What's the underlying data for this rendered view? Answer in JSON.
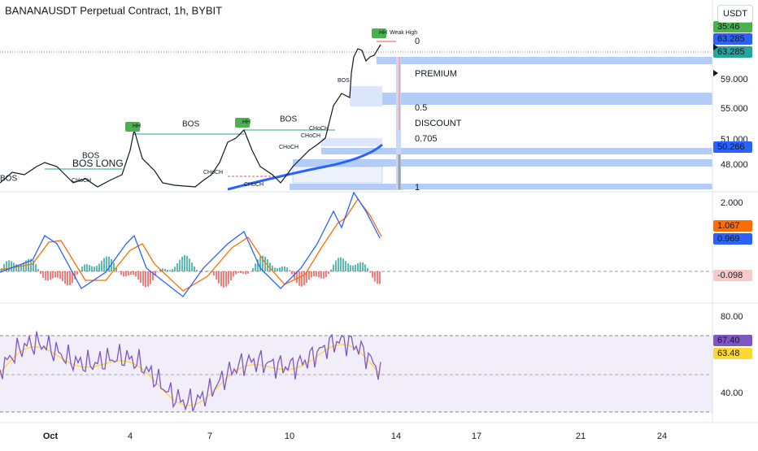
{
  "header": {
    "title": "BANANAUSDT Perpetual Contract, 1h, BYBIT",
    "currency_button": "USDT"
  },
  "price_pane": {
    "axis_labels": [
      "59.000",
      "55.000",
      "51.000",
      "48.000"
    ],
    "tags": [
      "35:46",
      "63.285",
      "63.285",
      "50.266"
    ],
    "fib_labels": [
      "0",
      "PREMIUM",
      "0.5",
      "DISCOUNT",
      "0.705",
      "1"
    ],
    "annotations": [
      "Weak High",
      "HH",
      "HH",
      "HH",
      "BOS",
      "BOS",
      "BOS",
      "BOS LONG",
      "BOS",
      "BOS",
      "CHoCH",
      "CHoCH",
      "CHoCH",
      "CHoCH",
      "CHoCH",
      "CHoCH"
    ]
  },
  "macd_pane": {
    "axis_labels": [
      "2.000"
    ],
    "tags": [
      "1.067",
      "0.969",
      "-0.098"
    ]
  },
  "rsi_pane": {
    "axis_labels": [
      "80.00",
      "40.00"
    ],
    "tags": [
      "67.40",
      "63.48"
    ]
  },
  "time_axis": {
    "labels": [
      "Oct",
      "4",
      "7",
      "10",
      "14",
      "17",
      "21",
      "24"
    ]
  }
}
